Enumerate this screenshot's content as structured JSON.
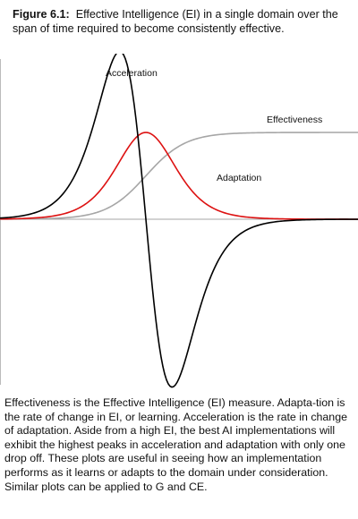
{
  "figure": {
    "label": "Figure 6.1:",
    "caption": "Effective Intelligence (EI) in a single domain over the span of time required to become consistently effective."
  },
  "labels": {
    "acceleration": "Acceleration",
    "effectiveness": "Effectiveness",
    "adaptation": "Adaptation"
  },
  "colors": {
    "acceleration": "#000000",
    "adaptation": "#dd1111",
    "effectiveness": "#a6a6a6",
    "baseline": "#a6a6a6"
  },
  "description": "Effectiveness is the Effective Intelligence (EI) measure. Adapta-tion is the rate of change in EI, or learning.  Acceleration is the rate in change of adaptation.  Aside from a high EI,  the best AI implementations will exhibit the highest peaks in acceleration and adaptation with only one drop off.  These plots are useful in seeing how an implementation performs as it learns or adapts to the domain under consideration. Similar plots can be applied to G and CE."
}
